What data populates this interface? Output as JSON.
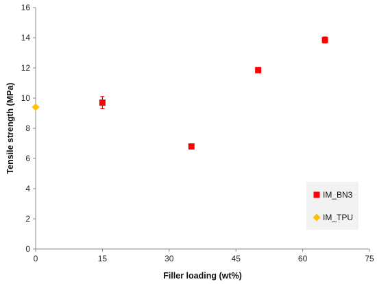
{
  "chart_data": {
    "type": "scatter",
    "title": "",
    "xlabel": "Filler loading (wt%)",
    "ylabel": "Tensile strength (MPa)",
    "xlim": [
      0,
      75
    ],
    "ylim": [
      0,
      16
    ],
    "xticks": [
      0,
      15,
      30,
      45,
      60,
      75
    ],
    "yticks": [
      0,
      2,
      4,
      6,
      8,
      10,
      12,
      14,
      16
    ],
    "grid": false,
    "legend_position": "bottom-right",
    "series": [
      {
        "name": "IM_BN3",
        "marker": "square",
        "color": "#ff0000",
        "points": [
          {
            "x": 15,
            "y": 9.7,
            "err": 0.4
          },
          {
            "x": 35,
            "y": 6.8,
            "err": 0
          },
          {
            "x": 50,
            "y": 11.85,
            "err": 0
          },
          {
            "x": 65,
            "y": 13.85,
            "err": 0.2
          }
        ]
      },
      {
        "name": "IM_TPU",
        "marker": "diamond",
        "color": "#ffc000",
        "points": [
          {
            "x": 0,
            "y": 9.4,
            "err": 0
          }
        ]
      }
    ]
  }
}
